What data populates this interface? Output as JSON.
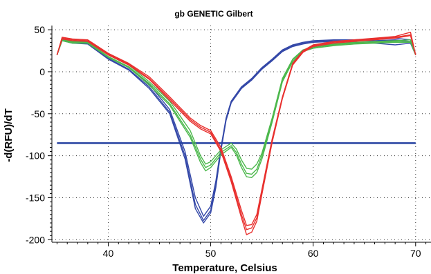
{
  "chart_data": {
    "type": "line",
    "title": "gb GENETIC Gilbert",
    "xlabel": "Temperature, Celsius",
    "ylabel": "-d(RFU)/dT",
    "xlim": [
      34.5,
      71.5
    ],
    "ylim": [
      -203,
      55
    ],
    "xticks": [
      40,
      50,
      60,
      70
    ],
    "yticks": [
      50,
      0,
      -50,
      -100,
      -150,
      -200
    ],
    "grid": true,
    "colors": {
      "blue": "#3448a8",
      "green": "#4cb84c",
      "red": "#e8302e",
      "threshold": "#2440a0"
    },
    "threshold": -85,
    "series": [
      {
        "color": "blue",
        "x": [
          35,
          35.5,
          36.5,
          38,
          40,
          42,
          44,
          46,
          47.5,
          48.5,
          49.3,
          50,
          50.5,
          51,
          51.5,
          52,
          53,
          54,
          55,
          56,
          57,
          58,
          59,
          60,
          62,
          64,
          66,
          68,
          69.5,
          70
        ],
        "values": [
          20,
          40,
          36,
          35,
          18,
          5,
          -15,
          -45,
          -95,
          -150,
          -172,
          -160,
          -130,
          -90,
          -55,
          -35,
          -18,
          -8,
          5,
          15,
          26,
          32,
          35,
          37,
          38,
          38,
          39,
          40,
          38,
          20
        ]
      },
      {
        "color": "blue",
        "x": [
          35,
          35.5,
          36.5,
          38,
          40,
          42,
          44,
          46,
          47.5,
          48.5,
          49.3,
          50,
          50.5,
          51,
          51.5,
          52,
          53,
          54,
          55,
          56,
          57,
          58,
          59,
          60,
          62,
          64,
          66,
          68,
          69.5,
          70
        ],
        "values": [
          20,
          38,
          35,
          34,
          16,
          3,
          -18,
          -48,
          -100,
          -158,
          -177,
          -165,
          -135,
          -92,
          -57,
          -36,
          -19,
          -9,
          4,
          14,
          25,
          31,
          34,
          36,
          37,
          37,
          37,
          38,
          36,
          20
        ]
      },
      {
        "color": "blue",
        "x": [
          35,
          35.5,
          36.5,
          38,
          40,
          42,
          44,
          46,
          47.5,
          48.5,
          49.3,
          50,
          50.5,
          51,
          51.5,
          52,
          53,
          54,
          55,
          56,
          57,
          58,
          59,
          60,
          62,
          64,
          66,
          68,
          69.5,
          70
        ],
        "values": [
          20,
          37,
          34,
          33,
          15,
          2,
          -20,
          -50,
          -104,
          -163,
          -180,
          -168,
          -138,
          -94,
          -58,
          -37,
          -20,
          -10,
          3,
          13,
          24,
          30,
          33,
          35,
          36,
          35,
          34,
          32,
          34,
          20
        ]
      },
      {
        "color": "blue",
        "x": [
          35,
          70
        ],
        "values": [
          -85,
          -85
        ]
      },
      {
        "color": "green",
        "x": [
          35,
          35.5,
          36.5,
          38,
          40,
          42,
          44,
          46,
          48,
          49,
          49.5,
          50,
          51,
          52,
          52.5,
          53,
          53.5,
          54,
          54.5,
          55,
          56,
          57,
          58,
          59,
          60,
          62,
          64,
          66,
          68,
          69.5,
          70
        ],
        "values": [
          20,
          39,
          36,
          36,
          20,
          8,
          -12,
          -35,
          -70,
          -100,
          -110,
          -107,
          -93,
          -85,
          -92,
          -105,
          -115,
          -116,
          -110,
          -97,
          -55,
          -8,
          15,
          26,
          30,
          33,
          35,
          36,
          37,
          38,
          20
        ]
      },
      {
        "color": "green",
        "x": [
          35,
          35.5,
          36.5,
          38,
          40,
          42,
          44,
          46,
          48,
          49,
          49.5,
          50,
          51,
          52,
          52.5,
          53,
          53.5,
          54,
          54.5,
          55,
          56,
          57,
          58,
          59,
          60,
          62,
          64,
          66,
          68,
          69.5,
          70
        ],
        "values": [
          20,
          38,
          35,
          35,
          18,
          6,
          -14,
          -38,
          -75,
          -104,
          -114,
          -111,
          -96,
          -88,
          -96,
          -110,
          -121,
          -122,
          -116,
          -100,
          -58,
          -10,
          14,
          25,
          29,
          32,
          34,
          35,
          36,
          36,
          20
        ]
      },
      {
        "color": "green",
        "x": [
          35,
          35.5,
          36.5,
          38,
          40,
          42,
          44,
          46,
          48,
          49,
          49.5,
          50,
          51,
          52,
          52.5,
          53,
          53.5,
          54,
          54.5,
          55,
          56,
          57,
          58,
          59,
          60,
          62,
          64,
          66,
          68,
          69.5,
          70
        ],
        "values": [
          20,
          37,
          34,
          34,
          17,
          5,
          -16,
          -40,
          -78,
          -108,
          -118,
          -114,
          -99,
          -90,
          -99,
          -114,
          -125,
          -126,
          -120,
          -104,
          -60,
          -12,
          12,
          24,
          28,
          31,
          33,
          34,
          35,
          35,
          20
        ]
      },
      {
        "color": "red",
        "x": [
          35,
          35.5,
          36.5,
          38,
          40,
          42,
          44,
          46,
          48,
          49,
          50,
          51,
          52,
          53,
          53.5,
          54,
          54.5,
          55,
          55.5,
          56,
          57,
          58,
          59,
          60,
          62,
          64,
          66,
          68,
          69.5,
          70
        ],
        "values": [
          20,
          41,
          39,
          38,
          22,
          10,
          -6,
          -30,
          -55,
          -64,
          -70,
          -90,
          -125,
          -165,
          -183,
          -182,
          -170,
          -140,
          -110,
          -80,
          -30,
          10,
          25,
          32,
          36,
          38,
          40,
          42,
          47,
          20
        ]
      },
      {
        "color": "red",
        "x": [
          35,
          35.5,
          36.5,
          38,
          40,
          42,
          44,
          46,
          48,
          49,
          50,
          51,
          52,
          53,
          53.5,
          54,
          54.5,
          55,
          55.5,
          56,
          57,
          58,
          59,
          60,
          62,
          64,
          66,
          68,
          69.5,
          70
        ],
        "values": [
          20,
          40,
          38,
          37,
          21,
          9,
          -8,
          -32,
          -57,
          -66,
          -72,
          -93,
          -128,
          -170,
          -188,
          -186,
          -174,
          -143,
          -112,
          -82,
          -31,
          9,
          24,
          31,
          35,
          37,
          39,
          41,
          44,
          20
        ]
      },
      {
        "color": "red",
        "x": [
          35,
          35.5,
          36.5,
          38,
          40,
          42,
          44,
          46,
          48,
          49,
          50,
          51,
          52,
          53,
          53.5,
          54,
          54.5,
          55,
          55.5,
          56,
          57,
          58,
          59,
          60,
          62,
          64,
          66,
          68,
          69.5,
          70
        ],
        "values": [
          20,
          39,
          37,
          36,
          20,
          8,
          -9,
          -34,
          -59,
          -68,
          -74,
          -95,
          -131,
          -174,
          -194,
          -191,
          -178,
          -146,
          -115,
          -84,
          -32,
          8,
          23,
          30,
          34,
          36,
          38,
          40,
          43,
          20
        ]
      }
    ]
  }
}
